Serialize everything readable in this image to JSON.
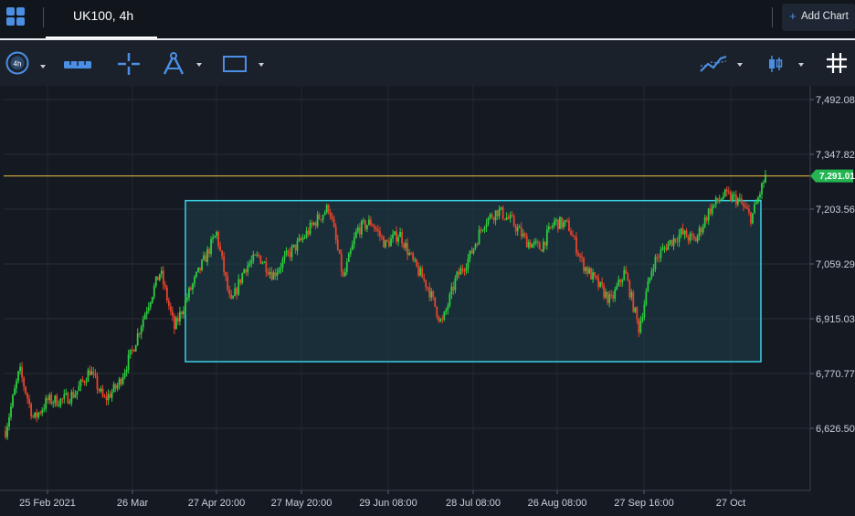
{
  "tab": {
    "title": "UK100, 4h"
  },
  "header": {
    "add_chart_label": "Add Chart"
  },
  "toolbar": {
    "timeframe": "4h",
    "icons": [
      "timeframe-selector-icon",
      "ruler-icon",
      "crosshair-icon",
      "drawing-tools-icon",
      "rectangle-icon",
      "indicators-icon",
      "candlestick-icon",
      "grid-icon"
    ]
  },
  "chart_data": {
    "type": "candlestick",
    "symbol": "UK100",
    "interval": "4h",
    "y_ticks": [
      "7,492.08",
      "7,347.82",
      "7,203.56",
      "7,059.29",
      "6,915.03",
      "6,770.77",
      "6,626.50"
    ],
    "x_ticks": [
      "25 Feb 2021",
      "26 Mar",
      "27 Apr 20:00",
      "27 May 20:00",
      "29 Jun 08:00",
      "28 Jul 08:00",
      "26 Aug 08:00",
      "27 Sep 16:00",
      "27 Oct"
    ],
    "ylim": [
      6530,
      7520
    ],
    "current_price": "7,291.01",
    "current_price_value": 7291.01,
    "annotation_rectangle": {
      "price_top": 7226,
      "price_bottom": 6802
    },
    "closes": [
      6620,
      6780,
      6650,
      6700,
      6700,
      6720,
      6780,
      6700,
      6740,
      6830,
      6940,
      7040,
      6890,
      6980,
      7060,
      7140,
      6950,
      7050,
      7080,
      7030,
      7080,
      7120,
      7170,
      7210,
      7020,
      7150,
      7170,
      7110,
      7140,
      7060,
      7000,
      6900,
      7020,
      7080,
      7170,
      7200,
      7170,
      7120,
      7100,
      7170,
      7160,
      7060,
      7010,
      6960,
      7040,
      6890,
      7060,
      7110,
      7140,
      7120,
      7200,
      7240,
      7230,
      7180,
      7290
    ],
    "colors": {
      "up": "#2ecc40",
      "down": "#e8442c",
      "rectangle_border": "#3ad1e6",
      "rectangle_fill": "#1e3f4a",
      "price_line": "#c6a23a",
      "price_tag": "#24b552"
    }
  }
}
